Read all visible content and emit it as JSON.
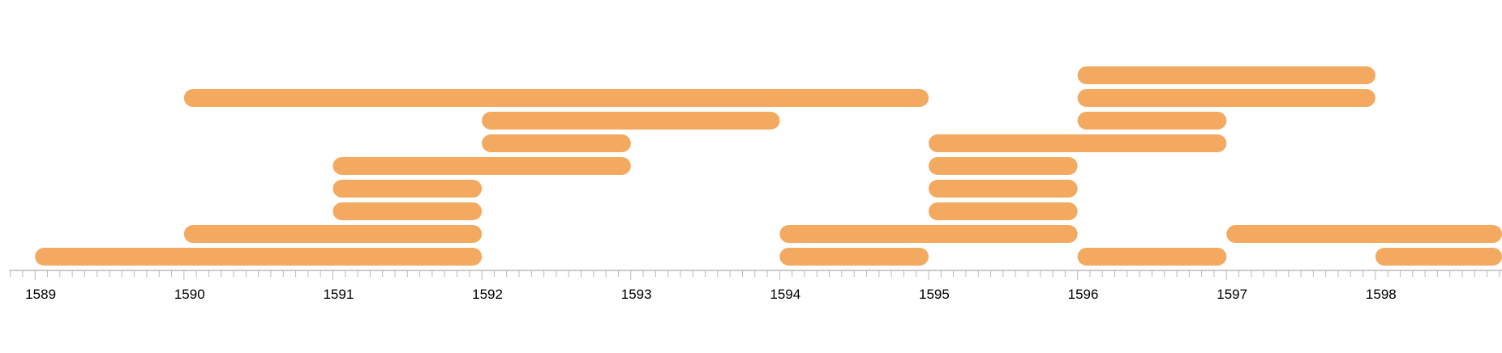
{
  "chart_data": {
    "type": "timeline",
    "title": "",
    "xlabel": "",
    "ylabel": "",
    "xlim": [
      1588.83,
      1598.85
    ],
    "grid": false,
    "legend": "none",
    "bar_color": "#F4A960",
    "axis_color": "#BBBBBB",
    "tick_labels": [
      "1589",
      "1590",
      "1591",
      "1592",
      "1593",
      "1594",
      "1595",
      "1596",
      "1597",
      "1598"
    ],
    "ticks_per_year": 12,
    "bars": [
      {
        "row": 0,
        "start": 1589.0,
        "end": 1592.0
      },
      {
        "row": 1,
        "start": 1590.0,
        "end": 1592.0
      },
      {
        "row": 2,
        "start": 1591.0,
        "end": 1592.0
      },
      {
        "row": 3,
        "start": 1591.0,
        "end": 1592.0
      },
      {
        "row": 4,
        "start": 1591.0,
        "end": 1593.0
      },
      {
        "row": 5,
        "start": 1592.0,
        "end": 1593.0
      },
      {
        "row": 6,
        "start": 1592.0,
        "end": 1594.0
      },
      {
        "row": 7,
        "start": 1590.0,
        "end": 1595.0
      },
      {
        "row": 0,
        "start": 1594.0,
        "end": 1595.0
      },
      {
        "row": 1,
        "start": 1594.0,
        "end": 1596.0
      },
      {
        "row": 2,
        "start": 1595.0,
        "end": 1596.0
      },
      {
        "row": 3,
        "start": 1595.0,
        "end": 1596.0
      },
      {
        "row": 4,
        "start": 1595.0,
        "end": 1596.0
      },
      {
        "row": 5,
        "start": 1595.0,
        "end": 1597.0
      },
      {
        "row": 6,
        "start": 1596.0,
        "end": 1597.0
      },
      {
        "row": 7,
        "start": 1596.0,
        "end": 1598.0
      },
      {
        "row": 8,
        "start": 1596.0,
        "end": 1598.0
      },
      {
        "row": 0,
        "start": 1596.0,
        "end": 1597.0
      },
      {
        "row": 1,
        "start": 1597.0,
        "end": 1598.85
      },
      {
        "row": 0,
        "start": 1598.0,
        "end": 1598.85
      }
    ]
  }
}
